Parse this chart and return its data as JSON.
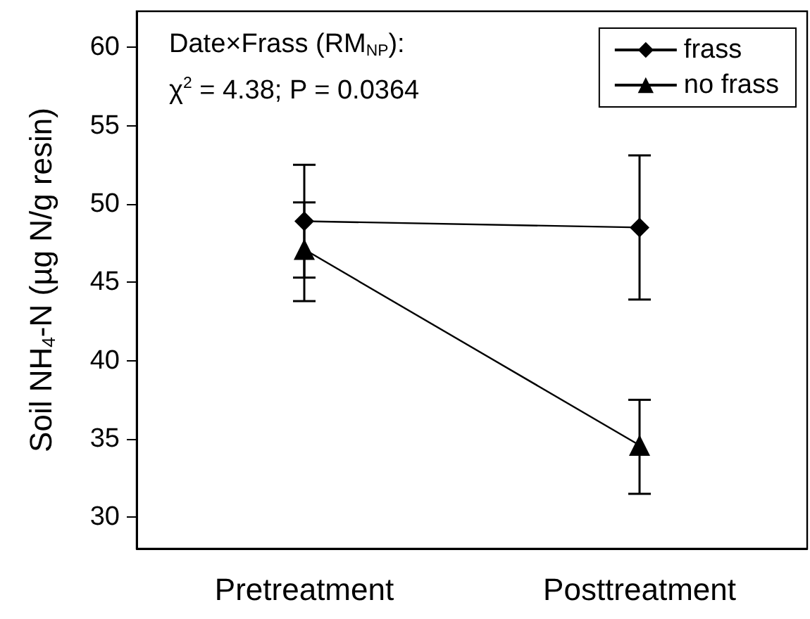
{
  "chart_data": {
    "type": "line",
    "ylabel": "Soil NH$_{4}$-N (µg N/g resin)",
    "categories": [
      "Pretreatment",
      "Posttreatment"
    ],
    "series": [
      {
        "name": "frass",
        "color": "#000000",
        "marker": "diamond",
        "values": [
          48.9,
          48.5
        ],
        "errors": [
          [
            45.3,
            52.5
          ],
          [
            43.9,
            53.1
          ]
        ]
      },
      {
        "name": "no frass",
        "color": "#000000",
        "marker": "triangle",
        "values": [
          47.1,
          34.6
        ],
        "errors": [
          [
            43.8,
            50.1
          ],
          [
            31.5,
            37.5
          ]
        ]
      }
    ],
    "ylim": [
      28,
      62.3
    ],
    "yticks": [
      30,
      35,
      40,
      45,
      50,
      55,
      60
    ],
    "grid": false,
    "legend": "top right",
    "annotations": [
      "Date×Frass (RM$_{NP}$):",
      "χ$^{2}$ = 4.38; P = 0.0364"
    ]
  }
}
